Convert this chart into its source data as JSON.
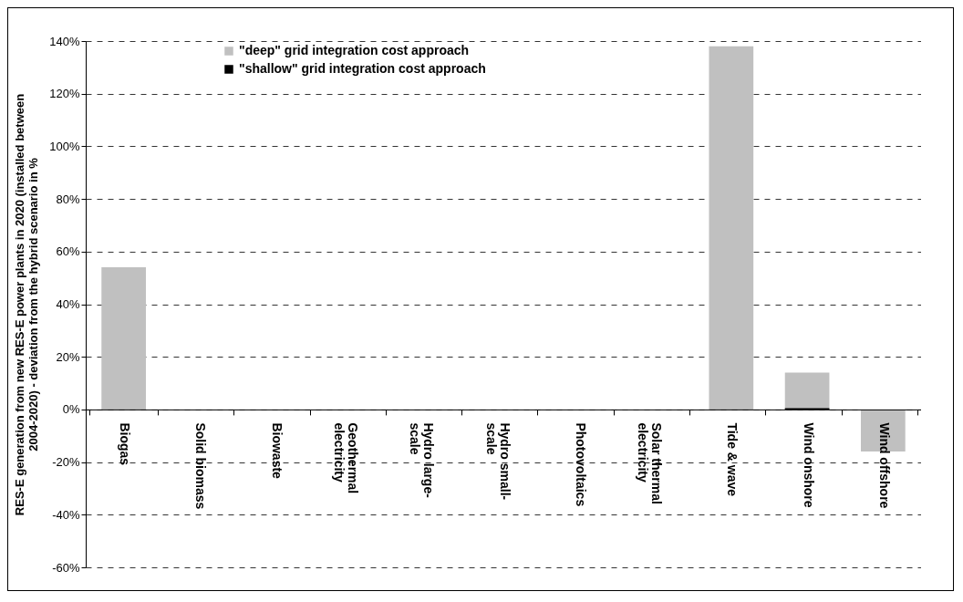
{
  "chart_data": {
    "type": "bar",
    "ylabel": "RES-E generation from new RES-E power plants in 2020 (installed between 2004-2020) - deviation from the hybrid scenario in %",
    "categories": [
      "Biogas",
      "Solid biomass",
      "Biowaste",
      "Geothermal electricity",
      "Hydro large-scale",
      "Hydro small-scale",
      "Photovoltaics",
      "Solar thermal electricity",
      "Tide & wave",
      "Wind onshore",
      "Wind offshore"
    ],
    "series": [
      {
        "name": "\"deep\" grid integration cost approach",
        "color": "#c0c0c0",
        "values": [
          54,
          0,
          0,
          0,
          0,
          0,
          0,
          0,
          138,
          14,
          -16
        ]
      },
      {
        "name": "\"shallow\" grid integration cost approach",
        "color": "#000000",
        "values": [
          0,
          0,
          0,
          0,
          0,
          0,
          0,
          0,
          0,
          0.5,
          0
        ]
      }
    ],
    "ylim": [
      -60,
      140
    ],
    "yticks": [
      {
        "value": -60,
        "label": "-60%"
      },
      {
        "value": -40,
        "label": "-40%"
      },
      {
        "value": -20,
        "label": "-20%"
      },
      {
        "value": 0,
        "label": "0%"
      },
      {
        "value": 20,
        "label": "20%"
      },
      {
        "value": 40,
        "label": "40%"
      },
      {
        "value": 60,
        "label": "60%"
      },
      {
        "value": 80,
        "label": "80%"
      },
      {
        "value": 100,
        "label": "100%"
      },
      {
        "value": 120,
        "label": "120%"
      },
      {
        "value": 140,
        "label": "140%"
      }
    ],
    "grid": "y",
    "legend": "top left"
  }
}
